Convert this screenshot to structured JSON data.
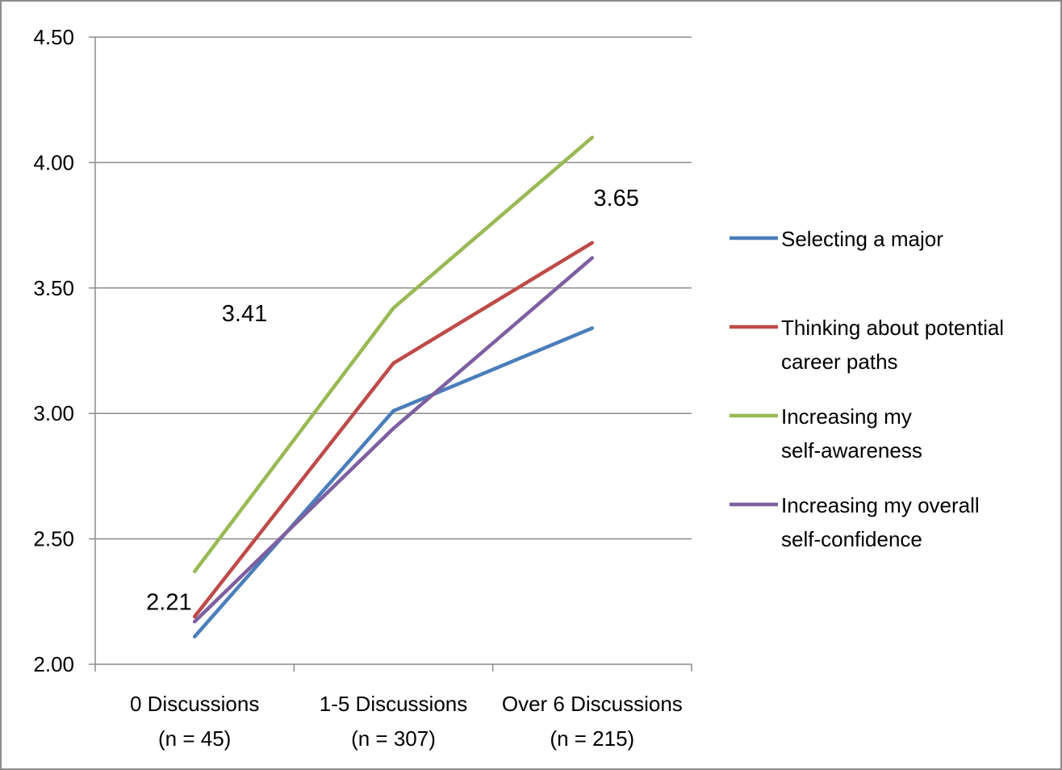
{
  "chart_data": {
    "type": "line",
    "categories": [
      "0 Discussions\n(n = 45)",
      "1-5 Discussions\n(n = 307)",
      "Over 6 Discussions\n(n = 215)"
    ],
    "ylim": [
      2.0,
      4.5
    ],
    "yticks": [
      "2.00",
      "2.50",
      "3.00",
      "3.50",
      "4.00",
      "4.50"
    ],
    "grid": true,
    "legend_position": "right",
    "series": [
      {
        "name": "Selecting a major",
        "color": "#4a7ebb",
        "values": [
          2.11,
          3.01,
          3.34
        ]
      },
      {
        "name": "Thinking about potential career paths",
        "color": "#be4b48",
        "values": [
          2.19,
          3.2,
          3.68
        ]
      },
      {
        "name": "Increasing my self-awareness",
        "color": "#98b954",
        "values": [
          2.37,
          3.42,
          4.1
        ]
      },
      {
        "name": "Increasing my overall self-confidence",
        "color": "#7d60a0",
        "values": [
          2.17,
          2.94,
          3.62
        ]
      }
    ],
    "annotations": [
      {
        "text": "2.21",
        "category": 0,
        "y": 2.25
      },
      {
        "text": "3.41",
        "category": 0.38,
        "y": 3.4
      },
      {
        "text": "3.65",
        "category": 2.25,
        "y": 3.86
      }
    ]
  }
}
